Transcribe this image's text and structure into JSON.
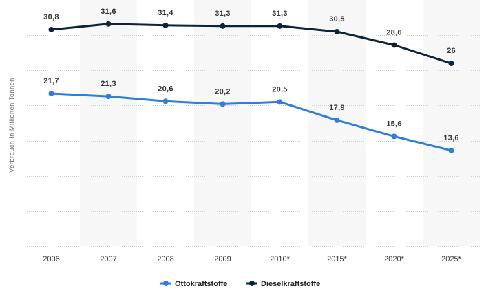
{
  "chart_data": {
    "type": "line",
    "title": "",
    "xlabel": "",
    "ylabel": "Verbrauch in Millionen Tonnen",
    "categories": [
      "2006",
      "2007",
      "2008",
      "2009",
      "2010*",
      "2015*",
      "2020*",
      "2025*"
    ],
    "ylim": [
      0,
      35
    ],
    "grid": true,
    "legend": "bottom-center",
    "series": [
      {
        "name": "Ottokraftstoffe",
        "color": "#2f7ed8",
        "values": [
          21.7,
          21.3,
          20.6,
          20.2,
          20.5,
          17.9,
          15.6,
          13.6
        ],
        "labels": [
          "21,7",
          "21,3",
          "20,6",
          "20,2",
          "20,5",
          "17,9",
          "15,6",
          "13,6"
        ]
      },
      {
        "name": "Dieselkraftstoffe",
        "color": "#0d233a",
        "values": [
          30.8,
          31.6,
          31.4,
          31.3,
          31.3,
          30.5,
          28.6,
          26.0
        ],
        "labels": [
          "30,8",
          "31,6",
          "31,4",
          "31,3",
          "31,3",
          "30,5",
          "28,6",
          "26"
        ]
      }
    ]
  }
}
